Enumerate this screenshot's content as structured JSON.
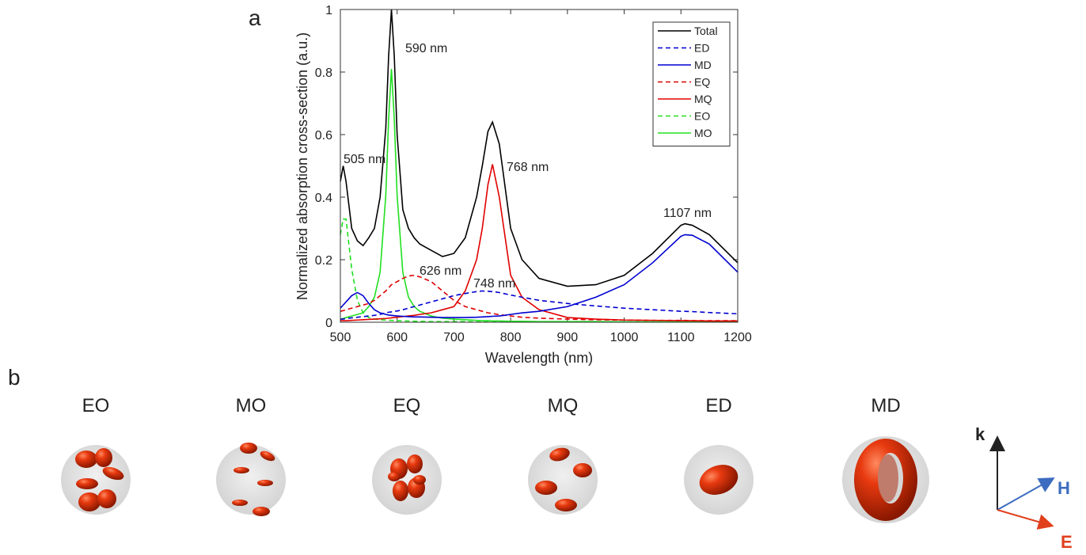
{
  "chart_data": {
    "type": "line",
    "x_label": "Wavelength (nm)",
    "y_label": "Normalized absorption cross-section (a.u.)",
    "x": [
      500,
      505,
      510,
      520,
      530,
      540,
      550,
      560,
      570,
      580,
      585,
      590,
      595,
      600,
      610,
      620,
      630,
      640,
      660,
      680,
      700,
      720,
      740,
      750,
      760,
      768,
      780,
      800,
      820,
      850,
      900,
      950,
      1000,
      1050,
      1100,
      1107,
      1120,
      1150,
      1200
    ],
    "series": [
      {
        "name": "Total",
        "color": "#000000",
        "linestyle": "solid",
        "values": [
          0.45,
          0.5,
          0.45,
          0.3,
          0.26,
          0.245,
          0.27,
          0.3,
          0.4,
          0.62,
          0.85,
          1.0,
          0.85,
          0.6,
          0.36,
          0.3,
          0.27,
          0.25,
          0.23,
          0.21,
          0.22,
          0.27,
          0.4,
          0.5,
          0.61,
          0.64,
          0.57,
          0.3,
          0.2,
          0.14,
          0.115,
          0.12,
          0.15,
          0.22,
          0.31,
          0.315,
          0.31,
          0.28,
          0.19
        ]
      },
      {
        "name": "ED",
        "color": "#0000d0",
        "linestyle": "dashed",
        "values": [
          0.01,
          0.01,
          0.012,
          0.014,
          0.016,
          0.018,
          0.02,
          0.022,
          0.025,
          0.03,
          0.032,
          0.033,
          0.035,
          0.036,
          0.04,
          0.045,
          0.05,
          0.055,
          0.065,
          0.075,
          0.085,
          0.092,
          0.098,
          0.1,
          0.099,
          0.098,
          0.095,
          0.087,
          0.08,
          0.07,
          0.06,
          0.052,
          0.045,
          0.04,
          0.035,
          0.035,
          0.034,
          0.031,
          0.027
        ]
      },
      {
        "name": "MD",
        "color": "#0000d0",
        "linestyle": "solid",
        "values": [
          0.045,
          0.055,
          0.065,
          0.085,
          0.095,
          0.085,
          0.06,
          0.04,
          0.03,
          0.025,
          0.023,
          0.022,
          0.021,
          0.02,
          0.019,
          0.018,
          0.017,
          0.017,
          0.016,
          0.015,
          0.015,
          0.015,
          0.016,
          0.017,
          0.018,
          0.019,
          0.02,
          0.025,
          0.03,
          0.035,
          0.05,
          0.08,
          0.12,
          0.19,
          0.275,
          0.28,
          0.278,
          0.25,
          0.16
        ]
      },
      {
        "name": "EQ",
        "color": "#e00000",
        "linestyle": "dashed",
        "values": [
          0.035,
          0.037,
          0.04,
          0.045,
          0.05,
          0.055,
          0.06,
          0.07,
          0.085,
          0.1,
          0.11,
          0.12,
          0.125,
          0.13,
          0.14,
          0.148,
          0.15,
          0.145,
          0.13,
          0.1,
          0.07,
          0.05,
          0.04,
          0.035,
          0.03,
          0.028,
          0.024,
          0.02,
          0.016,
          0.013,
          0.01,
          0.008,
          0.007,
          0.006,
          0.006,
          0.006,
          0.005,
          0.005,
          0.005
        ]
      },
      {
        "name": "MQ",
        "color": "#e00000",
        "linestyle": "solid",
        "values": [
          0.005,
          0.005,
          0.005,
          0.006,
          0.007,
          0.008,
          0.009,
          0.01,
          0.011,
          0.012,
          0.013,
          0.014,
          0.015,
          0.016,
          0.018,
          0.02,
          0.022,
          0.025,
          0.03,
          0.04,
          0.05,
          0.1,
          0.2,
          0.3,
          0.44,
          0.505,
          0.4,
          0.15,
          0.08,
          0.04,
          0.015,
          0.01,
          0.007,
          0.006,
          0.005,
          0.005,
          0.005,
          0.004,
          0.004
        ]
      },
      {
        "name": "EO",
        "color": "#20e020",
        "linestyle": "dashed",
        "values": [
          0.28,
          0.33,
          0.33,
          0.17,
          0.07,
          0.03,
          0.015,
          0.01,
          0.008,
          0.007,
          0.006,
          0.006,
          0.005,
          0.005,
          0.004,
          0.004,
          0.003,
          0.003,
          0.002,
          0.002,
          0.002,
          0.002,
          0.001,
          0.001,
          0.001,
          0.001,
          0.001,
          0.001,
          0.001,
          0.001,
          0.001,
          0.001,
          0.001,
          0.001,
          0.001,
          0.001,
          0.001,
          0.001,
          0.001
        ]
      },
      {
        "name": "MO",
        "color": "#20e020",
        "linestyle": "solid",
        "values": [
          0.01,
          0.012,
          0.015,
          0.02,
          0.025,
          0.03,
          0.05,
          0.08,
          0.16,
          0.405,
          0.648,
          0.81,
          0.648,
          0.405,
          0.16,
          0.08,
          0.05,
          0.035,
          0.02,
          0.013,
          0.01,
          0.008,
          0.006,
          0.005,
          0.005,
          0.004,
          0.004,
          0.003,
          0.003,
          0.002,
          0.002,
          0.002,
          0.001,
          0.001,
          0.001,
          0.001,
          0.001,
          0.001,
          0.001
        ]
      }
    ],
    "annotations": [
      "505 nm",
      "590 nm",
      "626 nm",
      "748 nm",
      "768 nm",
      "1107 nm"
    ],
    "xlim": [
      500,
      1200
    ],
    "xticks": [
      500,
      600,
      700,
      800,
      900,
      1000,
      1100,
      1200
    ],
    "ylim": [
      0,
      1
    ],
    "yticks": [
      0,
      0.2,
      0.4,
      0.6,
      0.8,
      1
    ],
    "grid": false,
    "legend": "upper right"
  },
  "panel_labels": [
    "a",
    "b"
  ],
  "mode_labels": [
    "EO",
    "MO",
    "EQ",
    "MQ",
    "ED",
    "MD"
  ],
  "axis_icon": {
    "k": "k",
    "H": "H",
    "E": "E"
  }
}
